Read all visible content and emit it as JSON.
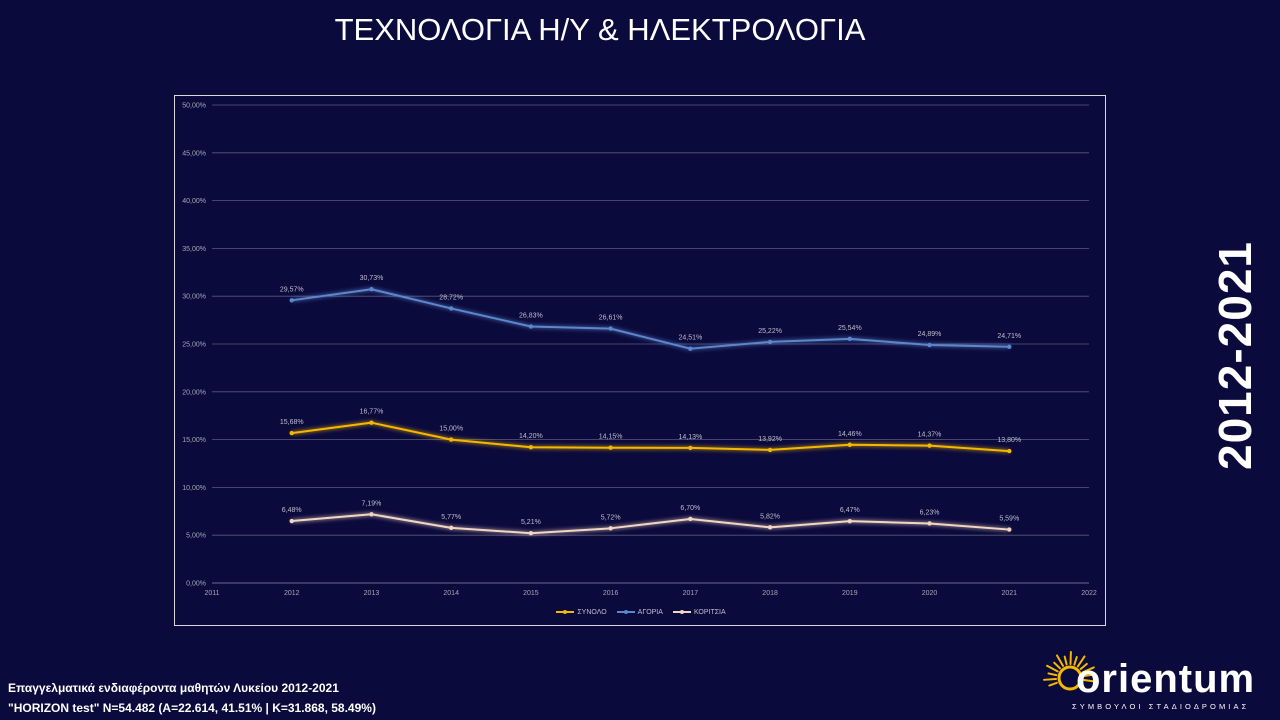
{
  "page": {
    "title": "ΤΕΧΝΟΛΟΓΙΑ Η/Υ & ΗΛΕΚΤΡΟΛΟΓΙΑ",
    "period": "2012-2021",
    "footer_line1": "Επαγγελματικά ενδιαφέροντα μαθητών Λυκείου 2012-2021",
    "footer_line2": "\"HORIZON test\" N=54.482 (A=22.614, 41.51% | K=31.868, 58.49%)"
  },
  "logo": {
    "name": "orientum",
    "tagline": "ΣΥΜΒΟΥΛΟΙ ΣΤΑΔΙΟΔΡΟΜΙΑΣ",
    "sun_color": "#f5b800"
  },
  "chart_data": {
    "type": "line",
    "x": [
      2012,
      2013,
      2014,
      2015,
      2016,
      2017,
      2018,
      2019,
      2020,
      2021
    ],
    "xlim": [
      2011,
      2022
    ],
    "x_ticks": [
      "2011",
      "2012",
      "2013",
      "2014",
      "2015",
      "2016",
      "2017",
      "2018",
      "2019",
      "2020",
      "2021",
      "2022"
    ],
    "ylim": [
      0,
      50
    ],
    "y_ticks": [
      "0,00%",
      "5,00%",
      "10,00%",
      "15,00%",
      "20,00%",
      "25,00%",
      "30,00%",
      "35,00%",
      "40,00%",
      "45,00%",
      "50,00%"
    ],
    "grid": true,
    "legend_position": "bottom",
    "series": [
      {
        "name": "ΣΥΝΟΛΟ",
        "color": "#f5b800",
        "values": [
          15.68,
          16.77,
          15.0,
          14.2,
          14.15,
          14.13,
          13.92,
          14.46,
          14.37,
          13.8
        ],
        "labels": [
          "15,68%",
          "16,77%",
          "15,00%",
          "14,20%",
          "14,15%",
          "14,13%",
          "13,92%",
          "14,46%",
          "14,37%",
          "13,80%"
        ]
      },
      {
        "name": "ΑΓΟΡΙΑ",
        "color": "#5b87cf",
        "values": [
          29.57,
          30.73,
          28.72,
          26.83,
          26.61,
          24.51,
          25.22,
          25.54,
          24.89,
          24.71
        ],
        "labels": [
          "29,57%",
          "30,73%",
          "28,72%",
          "26,83%",
          "26,61%",
          "24,51%",
          "25,22%",
          "25,54%",
          "24,89%",
          "24,71%"
        ]
      },
      {
        "name": "ΚΟΡΙΤΣΙΑ",
        "color": "#f3d6c2",
        "values": [
          6.48,
          7.19,
          5.77,
          5.21,
          5.72,
          6.7,
          5.82,
          6.47,
          6.23,
          5.59
        ],
        "labels": [
          "6,48%",
          "7,19%",
          "5,77%",
          "5,21%",
          "5,72%",
          "6,70%",
          "5,82%",
          "6,47%",
          "6,23%",
          "5,59%"
        ]
      }
    ]
  }
}
